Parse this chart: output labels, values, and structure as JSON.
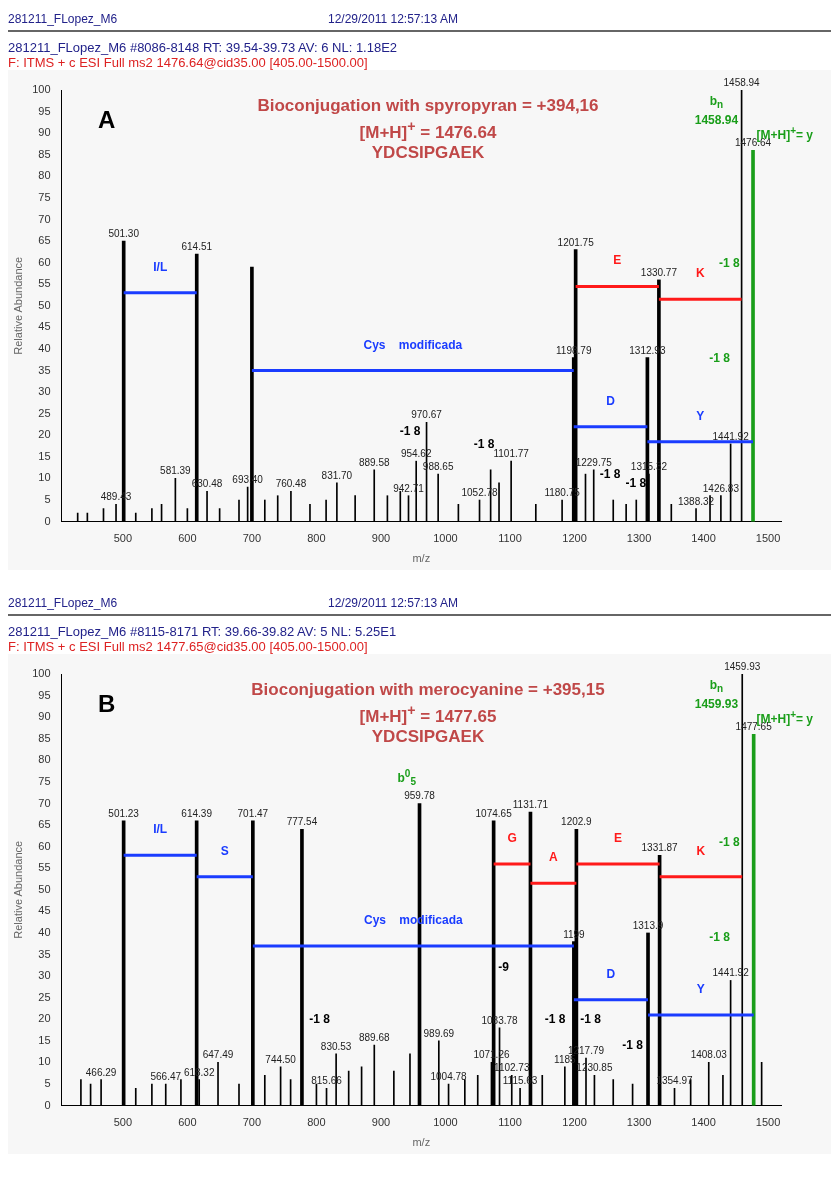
{
  "chart_data": [
    {
      "type": "bar",
      "title": "281211_FLopez_M6 #8086-8148  RT: 39.54-39.73  AV: 6  NL: 1.18E2",
      "subtitle": "F: ITMS + c ESI Full ms2 1476.64@cid35.00 [405.00-1500.00]",
      "xlabel": "m/z",
      "ylabel": "Relative Abundance",
      "xlim": [
        405,
        1520
      ],
      "xticks": [
        500,
        600,
        700,
        800,
        900,
        1000,
        1100,
        1200,
        1300,
        1400,
        1500
      ],
      "ylim": [
        0,
        100
      ],
      "yticks": [
        0,
        5,
        10,
        15,
        20,
        25,
        30,
        35,
        40,
        45,
        50,
        55,
        60,
        65,
        70,
        75,
        80,
        85,
        90,
        95,
        100
      ],
      "grid": false,
      "legend": false,
      "annotations": [
        "281211_FLopez_M6",
        "12/29/2011 12:57:13 AM",
        "A",
        "Bioconjugation with spyropyran = +394,16",
        "[M+H]$^{+}$ = 1476.64",
        "YDCSIPGAEK",
        "-1 8",
        "-1 8",
        "-1 8",
        "-1 8",
        "-1 8",
        "-1 8",
        "b$_{n}$",
        "1458.94",
        "[M+H]$^{+}$= y",
        {
          "text": "489.43",
          "x": 489.43,
          "y": 4
        },
        {
          "text": "581.39",
          "x": 581.39,
          "y": 10
        },
        {
          "text": "630.48",
          "x": 630.48,
          "y": 7
        },
        {
          "text": "693.40",
          "x": 693.4,
          "y": 8
        },
        {
          "text": "760.48",
          "x": 760.48,
          "y": 7
        },
        {
          "text": "831.70",
          "x": 831.7,
          "y": 9
        },
        {
          "text": "889.58",
          "x": 889.58,
          "y": 12
        },
        {
          "text": "942.71",
          "x": 942.71,
          "y": 6
        },
        {
          "text": "954.62",
          "x": 954.62,
          "y": 14
        },
        {
          "text": "970.67",
          "x": 970.67,
          "y": 23
        },
        {
          "text": "988.65",
          "x": 988.65,
          "y": 11
        },
        {
          "text": "1052.78",
          "x": 1052.78,
          "y": 5
        },
        {
          "text": "1101.77",
          "x": 1101.77,
          "y": 14
        },
        {
          "text": "1180.75",
          "x": 1180.75,
          "y": 5
        },
        {
          "text": "1229.75",
          "x": 1229.75,
          "y": 12
        },
        {
          "text": "1315.32",
          "x": 1315.32,
          "y": 11
        },
        {
          "text": "1388.32",
          "x": 1388.32,
          "y": 3
        },
        {
          "text": "1426.83",
          "x": 1426.83,
          "y": 6
        },
        {
          "text": "1441.92",
          "x": 1441.92,
          "y": 18
        },
        {
          "text": "1458.94",
          "x": 1458.94,
          "y": 100
        },
        {
          "text": "501.30",
          "x": 501.3,
          "y": 65
        },
        {
          "text": "614.51",
          "x": 614.51,
          "y": 62
        },
        {
          "text": "1198.79",
          "x": 1198.79,
          "y": 38
        },
        {
          "text": "1201.75",
          "x": 1201.75,
          "y": 63
        },
        {
          "text": "1312.93",
          "x": 1312.93,
          "y": 38
        },
        {
          "text": "1330.77",
          "x": 1330.77,
          "y": 56
        },
        {
          "text": "1476.64",
          "x": 1476.64,
          "y": 86
        }
      ],
      "series": [
        {
          "color": "#000000",
          "x": [
            430,
            445,
            470,
            489.43,
            520,
            545,
            560,
            581.39,
            600,
            630.48,
            650,
            680,
            693.4,
            720,
            740,
            760.48,
            790,
            815,
            831.7,
            860,
            889.58,
            910,
            930,
            942.71,
            954.62,
            970.67,
            988.65,
            1020,
            1052.78,
            1070,
            1083,
            1101.77,
            1140,
            1180.75,
            1217,
            1229.75,
            1260,
            1280,
            1295.71,
            1315.32,
            1350,
            1388.32,
            1410,
            1426.83,
            1441.92,
            1458.94
          ],
          "values": [
            2,
            2,
            3,
            4,
            2,
            3,
            4,
            10,
            3,
            7,
            3,
            5,
            8,
            5,
            6,
            7,
            4,
            5,
            9,
            6,
            12,
            6,
            7,
            6,
            14,
            23,
            11,
            4,
            5,
            12,
            9,
            14,
            4,
            5,
            11,
            12,
            5,
            4,
            5,
            11,
            4,
            3,
            6,
            6,
            18,
            100
          ]
        },
        {
          "color": "#000000",
          "x": [
            501.3,
            614.51,
            700,
            1198.79,
            1201.75,
            1312.93,
            1330.77
          ],
          "values": [
            65,
            62,
            59,
            38,
            63,
            38,
            56
          ]
        },
        {
          "color": "#1a9e1a",
          "x": [
            1476.64
          ],
          "values": [
            86
          ]
        },
        {
          "type": "line",
          "name": "I/L",
          "color": "#1a3cff",
          "x": [
            501.3,
            614.51
          ],
          "values": [
            53,
            53
          ]
        },
        {
          "type": "line",
          "name": "Cys    modificada",
          "color": "#1a3cff",
          "x": [
            700,
            1198.79
          ],
          "values": [
            35,
            35
          ]
        },
        {
          "type": "line",
          "name": "D",
          "color": "#1a3cff",
          "x": [
            1198.79,
            1312.93
          ],
          "values": [
            22,
            22
          ]
        },
        {
          "type": "line",
          "name": "Y",
          "color": "#1a3cff",
          "x": [
            1312.93,
            1476.64
          ],
          "values": [
            18.5,
            18.5
          ]
        },
        {
          "type": "line",
          "name": "E",
          "color": "#ff1a1a",
          "x": [
            1201.75,
            1330.77
          ],
          "values": [
            54.5,
            54.5
          ]
        },
        {
          "type": "line",
          "name": "K",
          "color": "#ff1a1a",
          "x": [
            1330.77,
            1458.94
          ],
          "values": [
            51.5,
            51.5
          ]
        }
      ]
    },
    {
      "type": "bar",
      "title": "281211_FLopez_M6 #8115-8171  RT: 39.66-39.82  AV: 5  NL: 5.25E1",
      "subtitle": "F: ITMS + c ESI Full ms2 1477.65@cid35.00 [405.00-1500.00]",
      "xlabel": "m/z",
      "ylabel": "Relative Abundance",
      "xlim": [
        405,
        1520
      ],
      "xticks": [
        500,
        600,
        700,
        800,
        900,
        1000,
        1100,
        1200,
        1300,
        1400,
        1500
      ],
      "ylim": [
        0,
        100
      ],
      "yticks": [
        0,
        5,
        10,
        15,
        20,
        25,
        30,
        35,
        40,
        45,
        50,
        55,
        60,
        65,
        70,
        75,
        80,
        85,
        90,
        95,
        100
      ],
      "grid": false,
      "legend": false,
      "annotations": [
        "281211_FLopez_M6",
        "12/29/2011 12:57:13 AM",
        "B",
        "Bioconjugation with merocyanine = +395,15",
        "[M+H]$^{+}$ = 1477.65",
        "YDCSIPGAEK",
        "-1 8",
        "-9",
        "-1 8",
        "-1 8",
        "-1 8",
        "-1 8",
        "-1 8",
        "b$^{0}$$_{5}$",
        "b$_{n}$",
        "1459.93",
        "[M+H]$^{+}$= y",
        {
          "text": "466.29",
          "x": 466.29,
          "y": 6
        },
        {
          "text": "566.47",
          "x": 566.47,
          "y": 5
        },
        {
          "text": "618.32",
          "x": 618.32,
          "y": 6
        },
        {
          "text": "647.49",
          "x": 647.49,
          "y": 10
        },
        {
          "text": "744.50",
          "x": 744.5,
          "y": 9
        },
        {
          "text": "815.66",
          "x": 815.66,
          "y": 4
        },
        {
          "text": "830.53",
          "x": 830.53,
          "y": 12
        },
        {
          "text": "889.68",
          "x": 889.68,
          "y": 14
        },
        {
          "text": "989.69",
          "x": 989.69,
          "y": 15
        },
        {
          "text": "1004.78",
          "x": 1004.78,
          "y": 5
        },
        {
          "text": "1071.26",
          "x": 1071.26,
          "y": 10
        },
        {
          "text": "1083.78",
          "x": 1083.78,
          "y": 18
        },
        {
          "text": "1102.73",
          "x": 1102.73,
          "y": 7
        },
        {
          "text": "1115.63",
          "x": 1115.63,
          "y": 4
        },
        {
          "text": "1185",
          "x": 1185,
          "y": 9
        },
        {
          "text": "1217.79",
          "x": 1217.79,
          "y": 11
        },
        {
          "text": "1230.85",
          "x": 1230.85,
          "y": 7
        },
        {
          "text": "1354.97",
          "x": 1354.97,
          "y": 4
        },
        {
          "text": "1408.03",
          "x": 1408.03,
          "y": 10
        },
        {
          "text": "1441.92",
          "x": 1441.92,
          "y": 29
        },
        {
          "text": "1459.93",
          "x": 1459.93,
          "y": 100
        },
        {
          "text": "501.23",
          "x": 501.23,
          "y": 66
        },
        {
          "text": "614.39",
          "x": 614.39,
          "y": 66
        },
        {
          "text": "701.47",
          "x": 701.47,
          "y": 66
        },
        {
          "text": "777.54",
          "x": 777.54,
          "y": 64
        },
        {
          "text": "959.78",
          "x": 959.78,
          "y": 70
        },
        {
          "text": "1074.65",
          "x": 1074.65,
          "y": 66
        },
        {
          "text": "1131.71",
          "x": 1131.71,
          "y": 68
        },
        {
          "text": "1199",
          "x": 1199,
          "y": 38
        },
        {
          "text": "1202.9",
          "x": 1202.9,
          "y": 64
        },
        {
          "text": "1313.9",
          "x": 1313.9,
          "y": 40
        },
        {
          "text": "1331.87",
          "x": 1331.87,
          "y": 58
        },
        {
          "text": "1477.65",
          "x": 1477.65,
          "y": 86
        }
      ],
      "series": [
        {
          "color": "#000000",
          "x": [
            435,
            450,
            466.29,
            520,
            545,
            566.47,
            590,
            618.32,
            647.49,
            680,
            720,
            744.5,
            760,
            800,
            815.66,
            830.53,
            850,
            870,
            889.68,
            920,
            945,
            989.69,
            1004.78,
            1030,
            1050,
            1071.26,
            1083.78,
            1102.73,
            1115.63,
            1150,
            1185,
            1217.79,
            1230.85,
            1260,
            1290,
            1354.97,
            1380,
            1408.03,
            1430,
            1441.92,
            1459.93,
            1490
          ],
          "values": [
            6,
            5,
            6,
            4,
            5,
            5,
            6,
            6,
            10,
            5,
            7,
            9,
            6,
            5,
            4,
            12,
            8,
            9,
            14,
            8,
            12,
            15,
            5,
            6,
            7,
            10,
            18,
            7,
            4,
            7,
            9,
            11,
            7,
            6,
            5,
            4,
            6,
            10,
            7,
            29,
            100,
            10
          ]
        },
        {
          "color": "#000000",
          "x": [
            501.23,
            614.39,
            701.47,
            777.54,
            959.78,
            1074.65,
            1131.71,
            1199,
            1202.9,
            1313.9,
            1331.87
          ],
          "values": [
            66,
            66,
            66,
            64,
            70,
            66,
            68,
            38,
            64,
            40,
            58
          ]
        },
        {
          "color": "#1a9e1a",
          "x": [
            1477.65
          ],
          "values": [
            86
          ]
        },
        {
          "type": "line",
          "name": "I/L",
          "color": "#1a3cff",
          "x": [
            501.23,
            614.39
          ],
          "values": [
            58,
            58
          ]
        },
        {
          "type": "line",
          "name": "S",
          "color": "#1a3cff",
          "x": [
            614.39,
            701.47
          ],
          "values": [
            53,
            53
          ]
        },
        {
          "type": "line",
          "name": "Cys    modificada",
          "color": "#1a3cff",
          "x": [
            701.47,
            1199
          ],
          "values": [
            37,
            37
          ]
        },
        {
          "type": "line",
          "name": "D",
          "color": "#1a3cff",
          "x": [
            1199,
            1313.9
          ],
          "values": [
            24.5,
            24.5
          ]
        },
        {
          "type": "line",
          "name": "Y",
          "color": "#1a3cff",
          "x": [
            1313.9,
            1477.65
          ],
          "values": [
            21,
            21
          ]
        },
        {
          "type": "line",
          "name": "G",
          "color": "#ff1a1a",
          "x": [
            1074.65,
            1131.71
          ],
          "values": [
            56,
            56
          ]
        },
        {
          "type": "line",
          "name": "A",
          "color": "#ff1a1a",
          "x": [
            1131.71,
            1202.9
          ],
          "values": [
            51.5,
            51.5
          ]
        },
        {
          "type": "line",
          "name": "E",
          "color": "#ff1a1a",
          "x": [
            1202.9,
            1331.87
          ],
          "values": [
            56,
            56
          ]
        },
        {
          "type": "line",
          "name": "K",
          "color": "#ff1a1a",
          "x": [
            1331.87,
            1459.93
          ],
          "values": [
            53,
            53
          ]
        }
      ]
    }
  ]
}
